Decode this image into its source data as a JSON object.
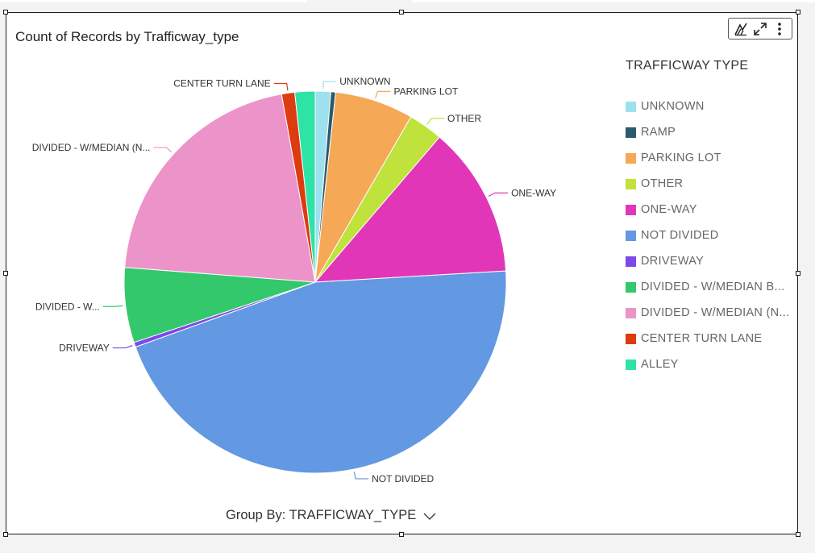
{
  "visual": {
    "title": "Count of Records by Trafficway_type",
    "legend_title": "TRAFFICWAY TYPE",
    "group_by_label": "Group By: TRAFFICWAY_TYPE",
    "toolbar_icons": [
      "insight-icon",
      "expand-icon",
      "more-menu-icon"
    ]
  },
  "chart_data": {
    "type": "pie",
    "title": "Count of Records by Trafficway_type",
    "legend_title": "TRAFFICWAY TYPE",
    "legend_placement": "right",
    "slices": [
      {
        "name": "UNKNOWN",
        "label": "UNKNOWN",
        "legend_label": "UNKNOWN",
        "value": 1.3,
        "color": "#9ee1ee"
      },
      {
        "name": "RAMP",
        "label": "",
        "legend_label": "RAMP",
        "value": 0.4,
        "color": "#2b5a6e"
      },
      {
        "name": "PARKING LOT",
        "label": "PARKING LOT",
        "legend_label": "PARKING LOT",
        "value": 6.6,
        "color": "#f5a856"
      },
      {
        "name": "OTHER",
        "label": "OTHER",
        "legend_label": "OTHER",
        "value": 2.9,
        "color": "#bfe23c"
      },
      {
        "name": "ONE-WAY",
        "label": "ONE-WAY",
        "legend_label": "ONE-WAY",
        "value": 12.7,
        "color": "#e236b9"
      },
      {
        "name": "NOT DIVIDED",
        "label": "NOT DIVIDED",
        "legend_label": "NOT DIVIDED",
        "value": 45.1,
        "color": "#6398e2"
      },
      {
        "name": "DRIVEWAY",
        "label": "DRIVEWAY",
        "legend_label": "DRIVEWAY",
        "value": 0.4,
        "color": "#7c4ae8"
      },
      {
        "name": "DIVIDED - W/MEDIAN B...",
        "label": "DIVIDED - W...",
        "legend_label": "DIVIDED - W/MEDIAN B...",
        "value": 6.3,
        "color": "#33c86c"
      },
      {
        "name": "DIVIDED - W/MEDIAN (N...",
        "label": "DIVIDED - W/MEDIAN (N...",
        "legend_label": "DIVIDED - W/MEDIAN (N...",
        "value": 20.8,
        "color": "#ec93c9"
      },
      {
        "name": "CENTER TURN LANE",
        "label": "CENTER TURN LANE",
        "legend_label": "CENTER TURN LANE",
        "value": 1.1,
        "color": "#dd3b10"
      },
      {
        "name": "ALLEY",
        "label": "",
        "legend_label": "ALLEY",
        "value": 1.7,
        "color": "#2de3a6"
      }
    ]
  }
}
